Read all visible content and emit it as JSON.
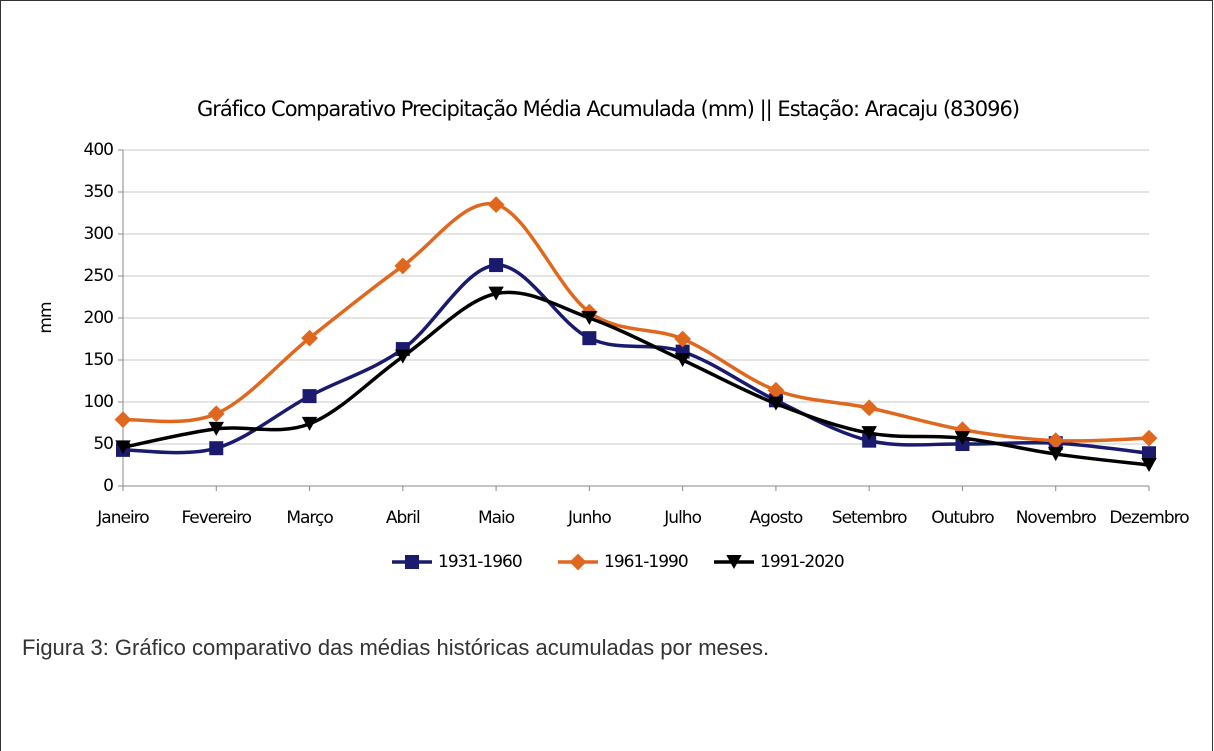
{
  "chart_data": {
    "type": "line",
    "title": "Gráfico Comparativo Precipitação Média Acumulada (mm) || Estação: Aracaju (83096)",
    "y_label": "mm",
    "categories": [
      "Janeiro",
      "Fevereiro",
      "Março",
      "Abril",
      "Maio",
      "Junho",
      "Julho",
      "Agosto",
      "Setembro",
      "Outubro",
      "Novembro",
      "Dezembro"
    ],
    "series": [
      {
        "name": "1931-1960",
        "color": "#1a1a6e",
        "marker": "square",
        "values": [
          43,
          45,
          107,
          163,
          263,
          176,
          160,
          102,
          54,
          50,
          51,
          39
        ]
      },
      {
        "name": "1961-1990",
        "color": "#e0681e",
        "marker": "diamond",
        "values": [
          79,
          86,
          176,
          262,
          335,
          207,
          175,
          114,
          93,
          67,
          54,
          57
        ]
      },
      {
        "name": "1991-2020",
        "color": "#000000",
        "marker": "triangle-down",
        "values": [
          46,
          68,
          74,
          154,
          229,
          200,
          150,
          98,
          63,
          57,
          38,
          25
        ]
      }
    ],
    "ylim": [
      0,
      400
    ],
    "yticks": [
      0,
      50,
      100,
      150,
      200,
      250,
      300,
      350,
      400
    ],
    "grid": true,
    "smooth": true,
    "legend": "bottom"
  },
  "caption": "Figura 3: Gráfico comparativo das médias históricas acumuladas por meses."
}
